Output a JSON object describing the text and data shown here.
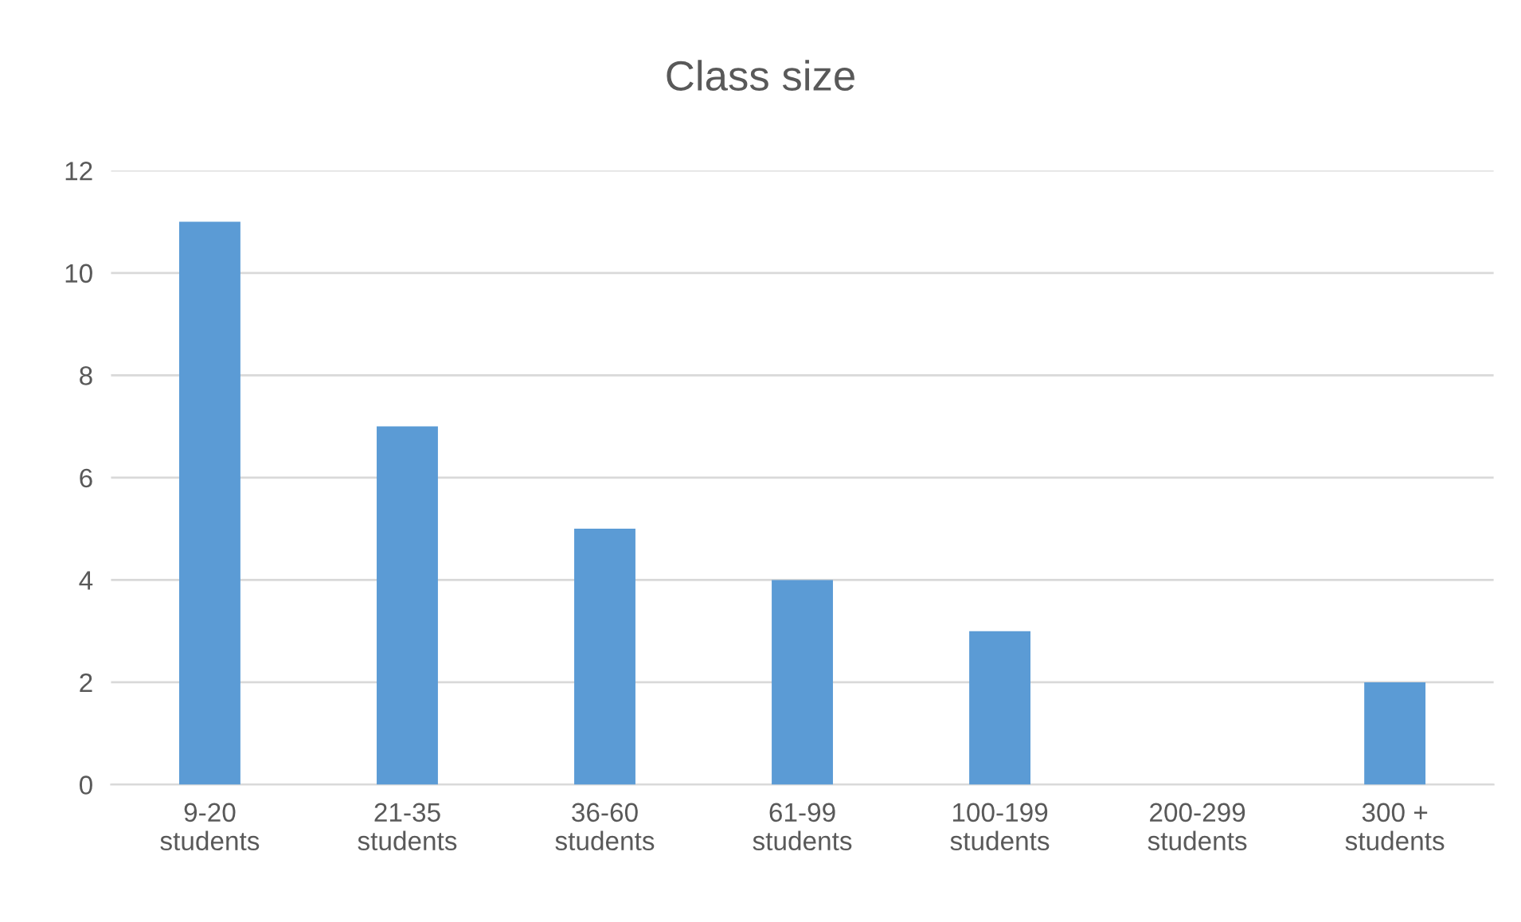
{
  "chart_data": {
    "type": "bar",
    "title": "Class size",
    "categories": [
      "9-20\nstudents",
      "21-35\nstudents",
      "36-60\nstudents",
      "61-99\nstudents",
      "100-199\nstudents",
      "200-299\nstudents",
      "300 +\nstudents"
    ],
    "values": [
      11,
      7,
      5,
      4,
      3,
      0,
      2
    ],
    "color": "#5b9bd5",
    "ylim": [
      0,
      12
    ],
    "yticks": [
      0,
      2,
      4,
      6,
      8,
      10,
      12
    ],
    "grid": "y"
  }
}
